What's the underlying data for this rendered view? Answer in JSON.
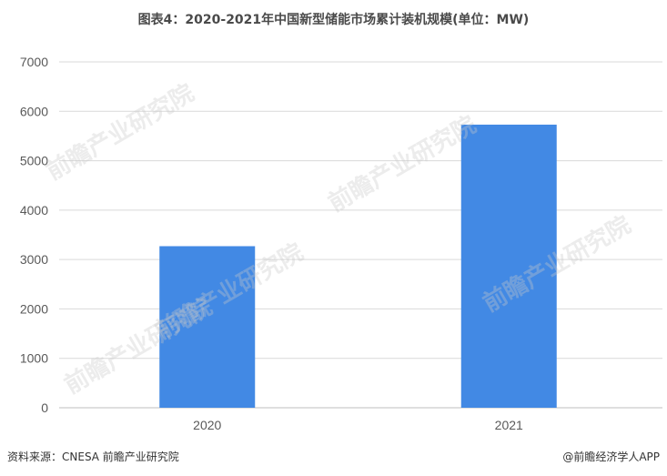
{
  "chart_data": {
    "type": "bar",
    "title": "图表4：2020-2021年中国新型储能市场累计装机规模(单位：MW)",
    "categories": [
      "2020",
      "2021"
    ],
    "values": [
      3270,
      5730
    ],
    "ylim": [
      0,
      7000
    ],
    "yticks": [
      0,
      1000,
      2000,
      3000,
      4000,
      5000,
      6000,
      7000
    ],
    "grid": true,
    "bar_color": "#4289E4"
  },
  "footer": {
    "source": "资料来源：CNESA 前瞻产业研究院",
    "brand": "@前瞻经济学人APP"
  },
  "watermark": "前瞻产业研究院"
}
